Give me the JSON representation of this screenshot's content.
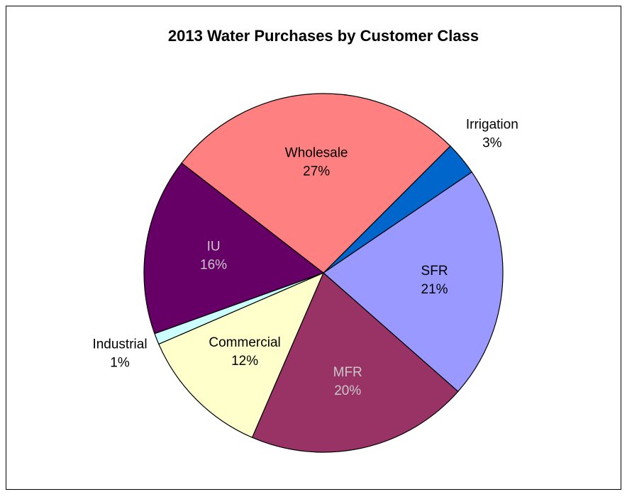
{
  "chart_data": {
    "type": "pie",
    "title": "2013 Water Purchases by Customer Class",
    "categories": [
      "Irrigation",
      "SFR",
      "MFR",
      "Commercial",
      "Industrial",
      "IU",
      "Wholesale"
    ],
    "values": [
      3,
      21,
      20,
      12,
      1,
      16,
      27
    ],
    "value_labels": [
      "3%",
      "21%",
      "20%",
      "12%",
      "1%",
      "16%",
      "27%"
    ],
    "colors": [
      "#0066cc",
      "#9999ff",
      "#993366",
      "#ffffcc",
      "#ccffff",
      "#660066",
      "#ff8080"
    ]
  }
}
